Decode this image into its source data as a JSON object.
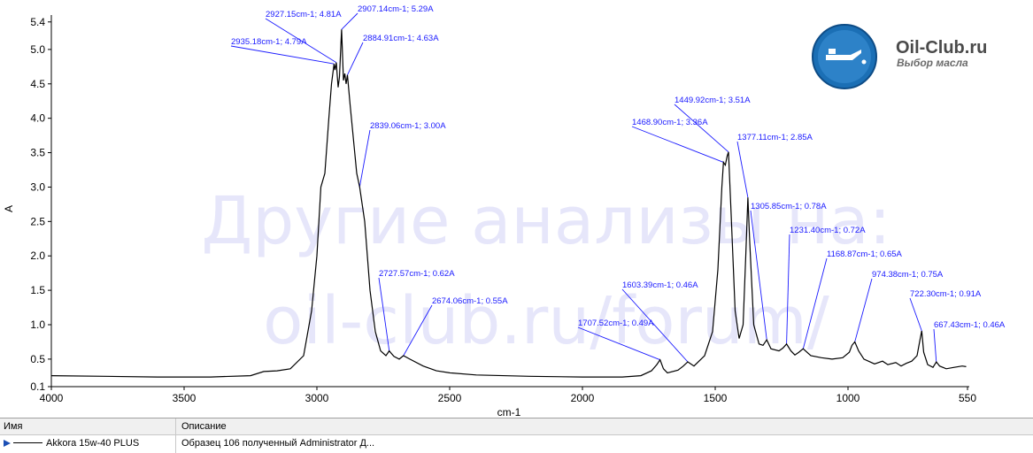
{
  "chart_data": {
    "type": "line",
    "xlabel": "cm-1",
    "ylabel": "A",
    "xlim": [
      4000,
      550
    ],
    "ylim": [
      0.1,
      5.5
    ],
    "x_reversed": true,
    "grid": false,
    "x_ticks": [
      4000,
      3500,
      3000,
      2500,
      2000,
      1500,
      1000,
      550
    ],
    "y_ticks": [
      0.1,
      0.5,
      1.0,
      1.5,
      2.0,
      2.5,
      3.0,
      3.5,
      4.0,
      4.5,
      5.0,
      5.4
    ],
    "x_tick_labels": [
      "4000",
      "3500",
      "3000",
      "2500",
      "2000",
      "1500",
      "1000",
      "550"
    ],
    "y_tick_labels": [
      "0.1",
      "0.5",
      "1.0",
      "1.5",
      "2.0",
      "2.5",
      "3.0",
      "3.5",
      "4.0",
      "4.5",
      "5.0",
      "5.4"
    ],
    "series": [
      {
        "color": "#000000",
        "points": [
          [
            4000,
            0.26
          ],
          [
            3800,
            0.25
          ],
          [
            3600,
            0.24
          ],
          [
            3400,
            0.24
          ],
          [
            3250,
            0.26
          ],
          [
            3200,
            0.32
          ],
          [
            3150,
            0.33
          ],
          [
            3100,
            0.36
          ],
          [
            3050,
            0.55
          ],
          [
            3020,
            1.2
          ],
          [
            3000,
            2.0
          ],
          [
            2985,
            3.0
          ],
          [
            2970,
            3.2
          ],
          [
            2955,
            4.0
          ],
          [
            2945,
            4.5
          ],
          [
            2935.18,
            4.79
          ],
          [
            2932,
            4.7
          ],
          [
            2927.15,
            4.81
          ],
          [
            2920,
            4.45
          ],
          [
            2915,
            4.6
          ],
          [
            2907.14,
            5.29
          ],
          [
            2900,
            4.55
          ],
          [
            2895,
            4.65
          ],
          [
            2890,
            4.5
          ],
          [
            2884.91,
            4.63
          ],
          [
            2875,
            4.2
          ],
          [
            2860,
            3.6
          ],
          [
            2850,
            3.2
          ],
          [
            2839.06,
            3.0
          ],
          [
            2820,
            2.5
          ],
          [
            2800,
            1.5
          ],
          [
            2780,
            0.9
          ],
          [
            2760,
            0.62
          ],
          [
            2740,
            0.55
          ],
          [
            2727.57,
            0.62
          ],
          [
            2710,
            0.54
          ],
          [
            2690,
            0.5
          ],
          [
            2674.06,
            0.55
          ],
          [
            2650,
            0.5
          ],
          [
            2600,
            0.4
          ],
          [
            2550,
            0.33
          ],
          [
            2500,
            0.3
          ],
          [
            2400,
            0.27
          ],
          [
            2200,
            0.25
          ],
          [
            2000,
            0.24
          ],
          [
            1850,
            0.24
          ],
          [
            1780,
            0.26
          ],
          [
            1740,
            0.33
          ],
          [
            1720,
            0.42
          ],
          [
            1707.52,
            0.49
          ],
          [
            1695,
            0.36
          ],
          [
            1680,
            0.3
          ],
          [
            1640,
            0.34
          ],
          [
            1620,
            0.4
          ],
          [
            1603.39,
            0.46
          ],
          [
            1580,
            0.4
          ],
          [
            1540,
            0.55
          ],
          [
            1510,
            0.9
          ],
          [
            1490,
            1.8
          ],
          [
            1475,
            3.0
          ],
          [
            1468.9,
            3.36
          ],
          [
            1462,
            3.32
          ],
          [
            1455,
            3.45
          ],
          [
            1449.92,
            3.51
          ],
          [
            1440,
            2.6
          ],
          [
            1425,
            1.2
          ],
          [
            1410,
            0.8
          ],
          [
            1395,
            1.0
          ],
          [
            1385,
            2.0
          ],
          [
            1377.11,
            2.85
          ],
          [
            1370,
            2.2
          ],
          [
            1355,
            1.0
          ],
          [
            1335,
            0.72
          ],
          [
            1320,
            0.7
          ],
          [
            1305.85,
            0.78
          ],
          [
            1290,
            0.65
          ],
          [
            1260,
            0.62
          ],
          [
            1245,
            0.66
          ],
          [
            1231.4,
            0.72
          ],
          [
            1215,
            0.62
          ],
          [
            1200,
            0.56
          ],
          [
            1185,
            0.6
          ],
          [
            1168.87,
            0.65
          ],
          [
            1140,
            0.55
          ],
          [
            1100,
            0.52
          ],
          [
            1060,
            0.5
          ],
          [
            1020,
            0.52
          ],
          [
            995,
            0.6
          ],
          [
            985,
            0.7
          ],
          [
            974.38,
            0.75
          ],
          [
            960,
            0.62
          ],
          [
            940,
            0.5
          ],
          [
            900,
            0.43
          ],
          [
            870,
            0.47
          ],
          [
            850,
            0.42
          ],
          [
            820,
            0.45
          ],
          [
            800,
            0.4
          ],
          [
            780,
            0.44
          ],
          [
            760,
            0.47
          ],
          [
            740,
            0.55
          ],
          [
            728,
            0.8
          ],
          [
            722.3,
            0.91
          ],
          [
            715,
            0.6
          ],
          [
            700,
            0.42
          ],
          [
            680,
            0.38
          ],
          [
            667.43,
            0.46
          ],
          [
            655,
            0.4
          ],
          [
            630,
            0.36
          ],
          [
            600,
            0.38
          ],
          [
            570,
            0.4
          ],
          [
            555,
            0.39
          ]
        ]
      }
    ],
    "annotations": [
      {
        "text": "2907.14cm-1; 5.29A",
        "x": 2907.14,
        "y": 5.29
      },
      {
        "text": "2927.15cm-1; 4.81A",
        "x": 2927.15,
        "y": 4.81
      },
      {
        "text": "2935.18cm-1; 4.79A",
        "x": 2935.18,
        "y": 4.79
      },
      {
        "text": "2884.91cm-1; 4.63A",
        "x": 2884.91,
        "y": 4.63
      },
      {
        "text": "2839.06cm-1; 3.00A",
        "x": 2839.06,
        "y": 3.0
      },
      {
        "text": "2727.57cm-1; 0.62A",
        "x": 2727.57,
        "y": 0.62
      },
      {
        "text": "2674.06cm-1; 0.55A",
        "x": 2674.06,
        "y": 0.55
      },
      {
        "text": "1707.52cm-1; 0.49A",
        "x": 1707.52,
        "y": 0.49
      },
      {
        "text": "1603.39cm-1; 0.46A",
        "x": 1603.39,
        "y": 0.46
      },
      {
        "text": "1468.90cm-1; 3.36A",
        "x": 1468.9,
        "y": 3.36
      },
      {
        "text": "1449.92cm-1; 3.51A",
        "x": 1449.92,
        "y": 3.51
      },
      {
        "text": "1377.11cm-1; 2.85A",
        "x": 1377.11,
        "y": 2.85
      },
      {
        "text": "1305.85cm-1; 0.78A",
        "x": 1305.85,
        "y": 0.78
      },
      {
        "text": "1231.40cm-1; 0.72A",
        "x": 1231.4,
        "y": 0.72
      },
      {
        "text": "1168.87cm-1; 0.65A",
        "x": 1168.87,
        "y": 0.65
      },
      {
        "text": "974.38cm-1; 0.75A",
        "x": 974.38,
        "y": 0.75
      },
      {
        "text": "722.30cm-1; 0.91A",
        "x": 722.3,
        "y": 0.91
      },
      {
        "text": "667.43cm-1; 0.46A",
        "x": 667.43,
        "y": 0.46
      }
    ]
  },
  "watermark": {
    "line1": "Другие анализы на:",
    "line2": "oil-club.ru/forum/"
  },
  "logo": {
    "title": "Oil-Club.ru",
    "subtitle": "Выбор масла",
    "icon": "oil-can-icon"
  },
  "table": {
    "col_name": "Имя",
    "col_desc": "Описание",
    "rows": [
      {
        "name": "Akkora 15w-40 PLUS",
        "desc": "Образец 106 полученный Administrator Д..."
      }
    ]
  },
  "colors": {
    "axis": "#000000",
    "annotation": "#1a1aff",
    "watermark": "#e6e6fa",
    "logo_text": "#4a4a4a",
    "logo_circle": "#1b6fb5"
  }
}
